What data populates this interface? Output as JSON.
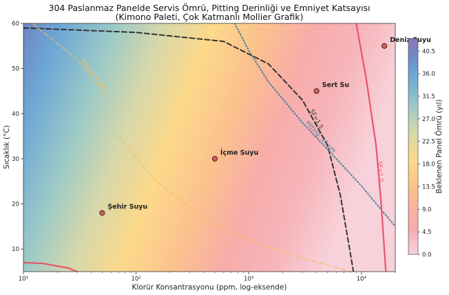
{
  "chart_data": {
    "type": "contour",
    "title": "304 Paslanmaz Panelde Servis Ömrü, Pitting Derinliği ve Emniyet Katsayısı",
    "subtitle": "(Kimono Paleti, Çok Katmanlı Mollier Grafik)",
    "xlabel": "Klorür Konsantrasyonu (ppm, log-eksende)",
    "ylabel": "Sıcaklık (°C)",
    "x_scale": "log",
    "xlim": [
      10,
      20000
    ],
    "ylim": [
      5,
      60
    ],
    "x_ticks": [
      {
        "value": 10,
        "label": "10¹"
      },
      {
        "value": 100,
        "label": "10²"
      },
      {
        "value": 1000,
        "label": "10³"
      },
      {
        "value": 10000,
        "label": "10⁴"
      }
    ],
    "y_ticks": [
      10,
      20,
      30,
      40,
      50,
      60
    ],
    "colorbar": {
      "label": "Beklenen Panel Ömrü (yıl)",
      "ticks": [
        0.0,
        4.5,
        9.0,
        13.5,
        18.0,
        22.5,
        27.0,
        31.5,
        36.0,
        40.5
      ],
      "range": [
        0,
        43
      ],
      "colors": [
        "#f7d3dc",
        "#f6aab0",
        "#fbc08a",
        "#fcd98a",
        "#d9d8a8",
        "#a8cfc2",
        "#7fb8d0",
        "#6aa6d6",
        "#7189c6",
        "#8c76b6"
      ]
    },
    "points": [
      {
        "name": "Şehir Suyu",
        "x": 50,
        "y": 18
      },
      {
        "name": "İçme Suyu",
        "x": 500,
        "y": 30
      },
      {
        "name": "Sert Su",
        "x": 4000,
        "y": 45
      },
      {
        "name": "Deniz Suyu",
        "x": 16000,
        "y": 55
      }
    ],
    "contour_lines": [
      {
        "label": "SF=1.5",
        "style": "dashed",
        "color": "#333333",
        "points": [
          [
            10,
            59
          ],
          [
            100,
            58
          ],
          [
            600,
            56
          ],
          [
            1500,
            51
          ],
          [
            3000,
            43
          ],
          [
            5000,
            33
          ],
          [
            6500,
            22
          ],
          [
            7500,
            13
          ],
          [
            8500,
            5
          ]
        ]
      },
      {
        "label": "Pitting: 14 µm",
        "style": "dotted",
        "color": "#4f7fa0",
        "points": [
          [
            750,
            60
          ],
          [
            1000,
            54
          ],
          [
            1500,
            47
          ],
          [
            3000,
            38
          ],
          [
            6000,
            30
          ],
          [
            10000,
            24
          ],
          [
            20000,
            15
          ]
        ]
      },
      {
        "label": "SF=1.0",
        "style": "solid",
        "color": "#e9546b",
        "points": [
          [
            9000,
            60
          ],
          [
            11000,
            48
          ],
          [
            13500,
            33
          ],
          [
            15000,
            20
          ],
          [
            16500,
            5
          ]
        ]
      },
      {
        "label": "",
        "style": "solid",
        "color": "#e9546b",
        "points": [
          [
            10,
            7
          ],
          [
            15,
            6.8
          ],
          [
            25,
            5.8
          ],
          [
            30,
            5
          ]
        ]
      },
      {
        "label": "Pitting: 4 µm",
        "style": "dashed",
        "color": "#f0c060",
        "points": [
          [
            12,
            60
          ],
          [
            30,
            52
          ],
          [
            55,
            44
          ]
        ]
      },
      {
        "label": "",
        "style": "dashed",
        "color": "#f0c060",
        "points": [
          [
            70,
            35
          ],
          [
            150,
            25
          ],
          [
            400,
            17
          ],
          [
            1000,
            12
          ],
          [
            3000,
            8
          ],
          [
            8000,
            5
          ]
        ]
      }
    ]
  }
}
